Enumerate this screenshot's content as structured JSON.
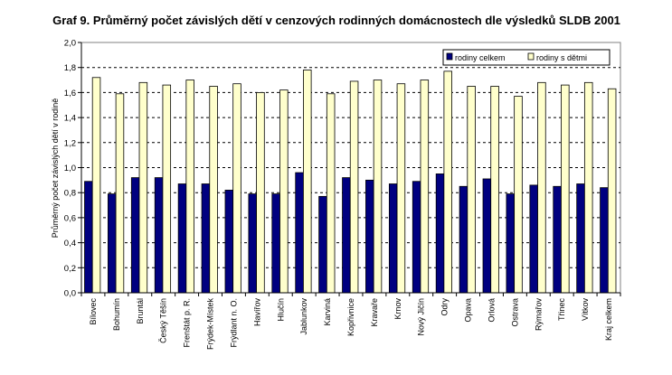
{
  "chart_data": {
    "type": "bar",
    "title": "Graf 9. Průměrný počet závislých dětí v cenzových rodinných domácnostech dle výsledků SLDB 2001",
    "xlabel": "",
    "ylabel": "Průměrný počet závislých dětí v rodině",
    "ylim": [
      0,
      2.0
    ],
    "yticks": [
      "0,0",
      "0,2",
      "0,4",
      "0,6",
      "0,8",
      "1,0",
      "1,2",
      "1,4",
      "1,6",
      "1,8",
      "2,0"
    ],
    "grid": true,
    "legend_position": "top-right",
    "categories": [
      "Bílovec",
      "Bohumín",
      "Bruntál",
      "Český Těšín",
      "Frenštát p. R.",
      "Frýdek-Místek",
      "Frýdlant n. O.",
      "Havířov",
      "Hlučín",
      "Jablunkov",
      "Karviná",
      "Kopřivnice",
      "Kravaře",
      "Krnov",
      "Nový Jičín",
      "Odry",
      "Opava",
      "Orlová",
      "Ostrava",
      "Rýmařov",
      "Třinec",
      "Vítkov",
      "Kraj celkem"
    ],
    "series": [
      {
        "name": "rodiny celkem",
        "color": "#000080",
        "values": [
          0.89,
          0.79,
          0.92,
          0.92,
          0.87,
          0.87,
          0.82,
          0.79,
          0.79,
          0.96,
          0.77,
          0.92,
          0.9,
          0.87,
          0.89,
          0.95,
          0.85,
          0.91,
          0.79,
          0.86,
          0.85,
          0.87,
          0.84
        ]
      },
      {
        "name": "rodiny s dětmi",
        "color": "#FFFFCC",
        "values": [
          1.72,
          1.59,
          1.68,
          1.66,
          1.7,
          1.65,
          1.67,
          1.6,
          1.62,
          1.78,
          1.59,
          1.69,
          1.7,
          1.67,
          1.7,
          1.77,
          1.65,
          1.65,
          1.57,
          1.68,
          1.66,
          1.68,
          1.63
        ]
      }
    ]
  }
}
